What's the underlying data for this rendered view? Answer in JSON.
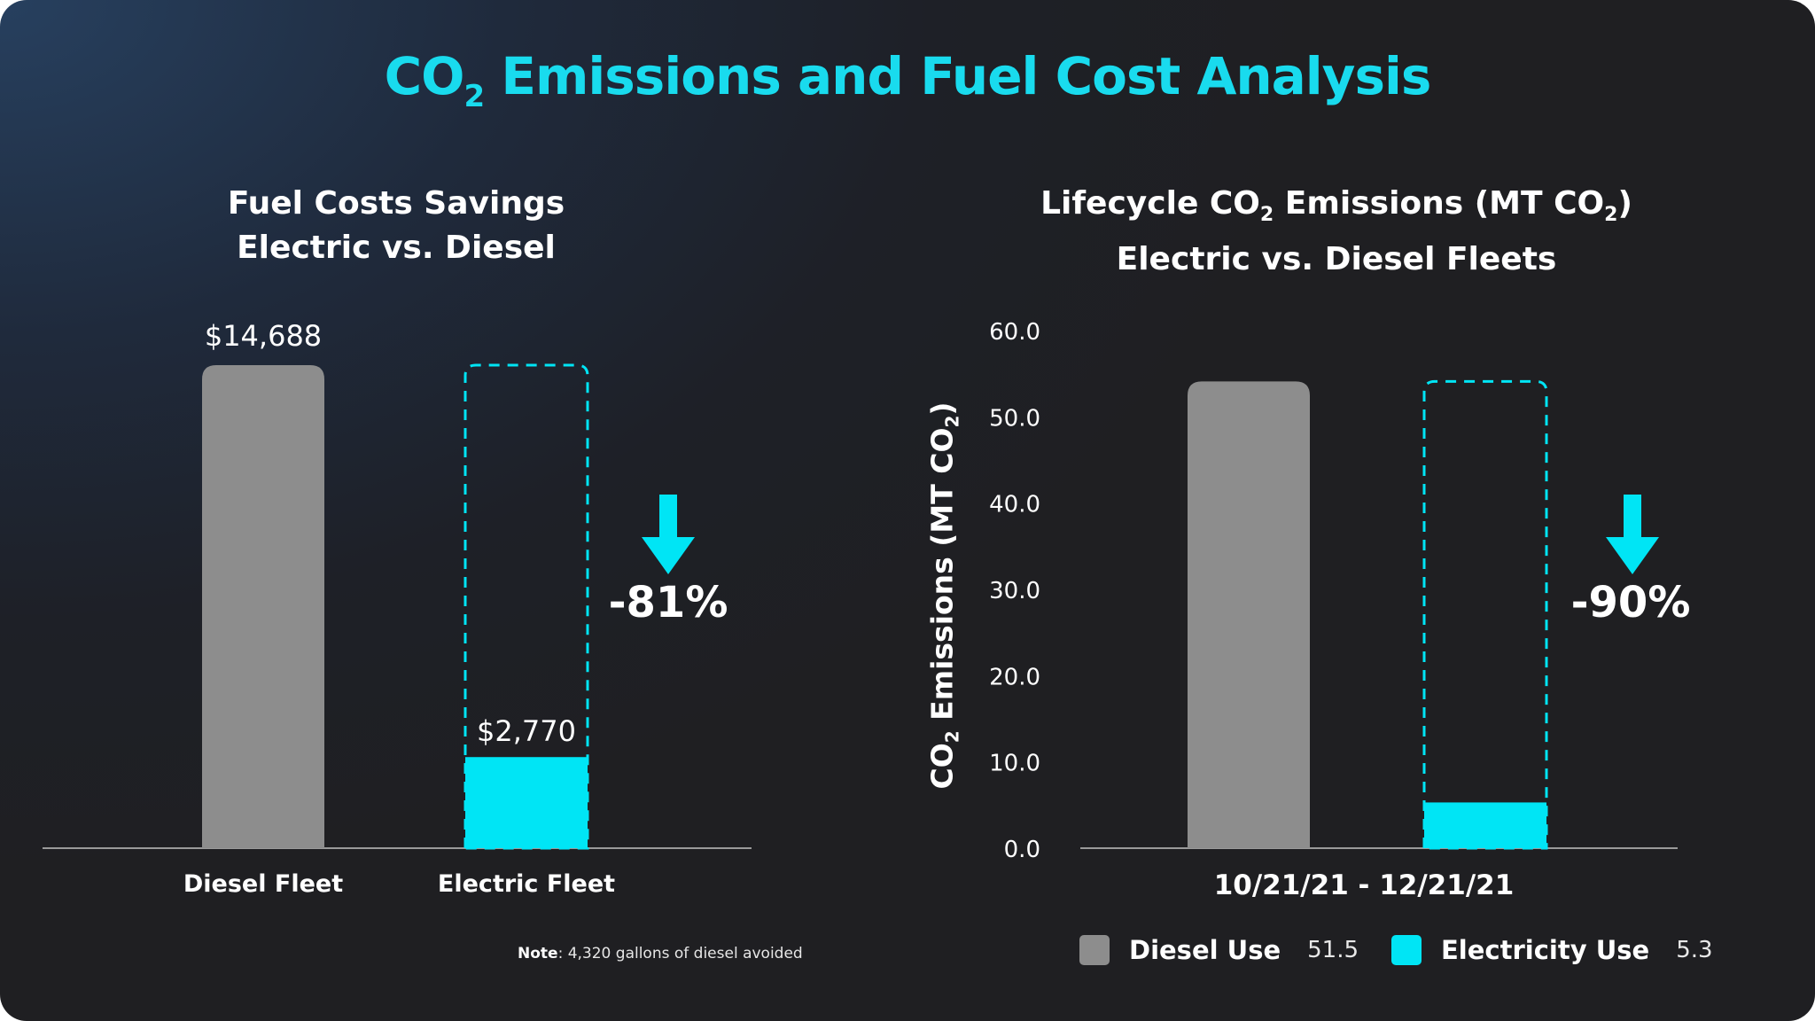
{
  "title": {
    "main": "CO",
    "sub": "2",
    "rest": " Emissions and Fuel Cost Analysis"
  },
  "colors": {
    "accent": "#00e5f5",
    "diesel": "#8d8d8d",
    "title": "#19dbee",
    "axis": "#9a9a9a"
  },
  "chart_data": [
    {
      "type": "bar",
      "title_line1": "Fuel Costs Savings",
      "title_line2": "Electric vs. Diesel",
      "categories": [
        "Diesel Fleet",
        "Electric Fleet"
      ],
      "values": [
        14688,
        2770
      ],
      "value_labels": [
        "$14,688",
        "$2,770"
      ],
      "ylim": [
        0,
        14688
      ],
      "reduction_label": "-81%",
      "note_bold": "Note",
      "note_text": ": 4,320 gallons of diesel avoided"
    },
    {
      "type": "bar",
      "title_pre": "Lifecycle CO",
      "title_sub": "2",
      "title_mid": " Emissions (MT CO",
      "title_sub2": "2",
      "title_post": ")",
      "title_line2": "Electric vs. Diesel Fleets",
      "ylabel_pre": "CO",
      "ylabel_sub": "2",
      "ylabel_mid": " Emissions (MT CO",
      "ylabel_sub2": "2",
      "ylabel_post": ")",
      "xlabel": "10/21/21 - 12/21/21",
      "ylim": [
        0,
        60
      ],
      "yticks": [
        "0.0",
        "10.0",
        "20.0",
        "30.0",
        "40.0",
        "50.0",
        "60.0"
      ],
      "series": [
        {
          "name": "Diesel Use",
          "value": 51.5,
          "value_label": "51.5"
        },
        {
          "name": "Electricity Use",
          "value": 5.3,
          "value_label": "5.3"
        }
      ],
      "max_reference": 54.1,
      "reduction_label": "-90%"
    }
  ]
}
